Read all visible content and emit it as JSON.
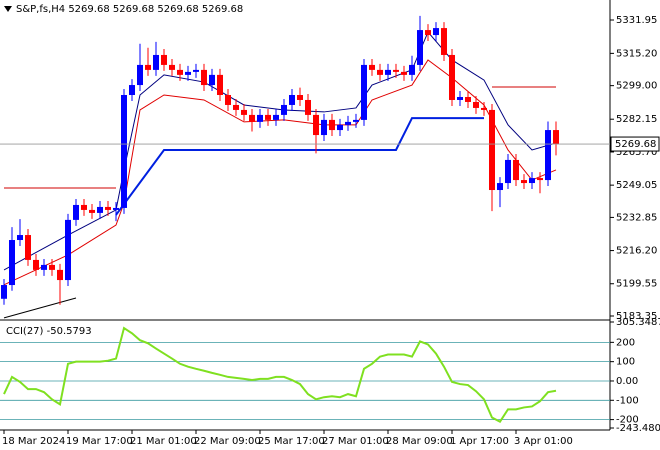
{
  "chart_data": {
    "type": "candlestick",
    "title": "S&P,fs,H4 5269.68 5269.68 5269.68 5269.68",
    "categories": [
      "18 Mar 2024",
      null,
      null,
      null,
      null,
      null,
      null,
      null,
      "19 Mar 17:00",
      null,
      null,
      null,
      null,
      null,
      null,
      null,
      "21 Mar 01:00",
      null,
      null,
      null,
      null,
      null,
      null,
      null,
      "22 Mar 09:00",
      null,
      null,
      null,
      null,
      null,
      null,
      null,
      "25 Mar 17:00",
      null,
      null,
      null,
      null,
      null,
      null,
      null,
      "27 Mar 01:00",
      null,
      null,
      null,
      null,
      null,
      null,
      null,
      "28 Mar 09:00",
      null,
      null,
      null,
      null,
      null,
      null,
      null,
      "1 Apr 17:00",
      null,
      null,
      null,
      null,
      null,
      null,
      null,
      "3 Apr 01:00",
      null,
      null,
      null,
      null,
      null
    ],
    "open": [
      5192.0,
      5198.9,
      5221.5,
      5224.0,
      5211.5,
      5206.5,
      5209.0,
      5206.5,
      5201.4,
      5231.6,
      5239.1,
      5236.6,
      5235.1,
      5238.1,
      5236.6,
      5237.6,
      5294.3,
      5299.3,
      5309.4,
      5306.9,
      5314.4,
      5309.4,
      5306.9,
      5304.4,
      5305.9,
      5306.9,
      5299.3,
      5304.4,
      5294.3,
      5289.3,
      5286.8,
      5284.3,
      5280.8,
      5284.3,
      5281.8,
      5284.3,
      5289.3,
      5294.3,
      5291.8,
      5284.3,
      5274.2,
      5281.8,
      5276.7,
      5279.3,
      5280.8,
      5281.8,
      5309.4,
      5306.9,
      5304.4,
      5306.9,
      5305.9,
      5304.4,
      5309.4,
      5326.9,
      5324.4,
      5327.9,
      5314.4,
      5291.8,
      5293.3,
      5290.8,
      5287.8,
      5286.8,
      5246.6,
      5250.1,
      5261.7,
      5251.6,
      5250.1,
      5252.6,
      5251.6,
      5276.7
    ],
    "high": [
      5201.9,
      5228.0,
      5232.0,
      5227.0,
      5214.5,
      5212.0,
      5212.0,
      5209.5,
      5234.6,
      5242.1,
      5242.1,
      5239.6,
      5241.1,
      5241.1,
      5240.6,
      5297.3,
      5302.3,
      5320.0,
      5318.0,
      5321.0,
      5317.4,
      5312.4,
      5309.9,
      5308.9,
      5309.9,
      5309.9,
      5307.4,
      5307.4,
      5297.3,
      5292.3,
      5289.8,
      5287.3,
      5287.3,
      5287.3,
      5287.3,
      5292.3,
      5297.3,
      5298.0,
      5294.8,
      5287.3,
      5284.8,
      5284.8,
      5282.3,
      5283.8,
      5284.8,
      5312.4,
      5312.4,
      5309.9,
      5309.9,
      5309.9,
      5308.9,
      5314.0,
      5334.0,
      5329.9,
      5330.9,
      5330.9,
      5317.4,
      5296.3,
      5296.3,
      5293.8,
      5290.8,
      5289.8,
      5253.1,
      5264.7,
      5264.7,
      5254.6,
      5255.6,
      5255.6,
      5281.0,
      5281.0
    ],
    "low": [
      5189.0,
      5196.0,
      5218.5,
      5208.5,
      5203.5,
      5203.5,
      5203.5,
      5189.0,
      5198.4,
      5228.6,
      5233.6,
      5232.1,
      5232.1,
      5233.6,
      5231.0,
      5234.6,
      5291.3,
      5296.3,
      5303.9,
      5303.9,
      5306.4,
      5303.9,
      5301.4,
      5301.4,
      5302.9,
      5296.3,
      5296.3,
      5291.3,
      5286.3,
      5283.8,
      5281.3,
      5276.0,
      5277.8,
      5278.8,
      5278.8,
      5281.3,
      5286.3,
      5288.8,
      5281.3,
      5265.0,
      5271.2,
      5273.7,
      5273.7,
      5276.3,
      5277.8,
      5278.8,
      5303.9,
      5301.4,
      5301.4,
      5302.9,
      5301.4,
      5301.4,
      5306.4,
      5321.4,
      5321.4,
      5311.4,
      5288.8,
      5288.8,
      5287.8,
      5284.8,
      5283.8,
      5236.0,
      5238.0,
      5247.1,
      5248.6,
      5247.1,
      5247.1,
      5245.0,
      5248.6,
      5264.0
    ],
    "close": [
      5198.9,
      5221.5,
      5224.0,
      5211.5,
      5206.5,
      5209.0,
      5206.5,
      5201.4,
      5231.6,
      5239.1,
      5236.6,
      5235.1,
      5238.1,
      5236.6,
      5237.6,
      5294.3,
      5299.3,
      5309.4,
      5306.9,
      5314.4,
      5309.4,
      5306.9,
      5304.4,
      5305.9,
      5306.9,
      5299.3,
      5304.4,
      5294.3,
      5289.3,
      5286.8,
      5284.3,
      5280.8,
      5284.3,
      5281.8,
      5284.3,
      5289.3,
      5294.3,
      5291.8,
      5284.3,
      5274.2,
      5281.8,
      5276.7,
      5279.3,
      5280.8,
      5281.8,
      5309.4,
      5306.9,
      5304.4,
      5306.9,
      5305.9,
      5304.4,
      5309.4,
      5326.9,
      5324.4,
      5327.9,
      5314.4,
      5291.8,
      5293.3,
      5290.8,
      5287.8,
      5286.8,
      5246.6,
      5250.1,
      5261.7,
      5251.6,
      5250.1,
      5252.6,
      5251.6,
      5276.7,
      5269.7
    ],
    "up_color": "#0000ff",
    "down_color": "#ff0000",
    "ylim": [
      5182.35,
      5340.99
    ],
    "yticks": [
      {
        "value": 5331.95,
        "label": "5331.95"
      },
      {
        "value": 5315.2,
        "label": "5315.20"
      },
      {
        "value": 5299,
        "label": "5299.00"
      },
      5282.15,
      {
        "value": 5265.7,
        "label": "5265.70"
      },
      5249.05,
      5232.85,
      {
        "value": 5216.2,
        "label": "5216.20"
      },
      5199.55,
      5183.35
    ],
    "last_price": 5269.68,
    "overlays": [
      {
        "color": "#00007f",
        "x": [
          0,
          8,
          14,
          15,
          17,
          20,
          25,
          30,
          35,
          40,
          44,
          46,
          51,
          53,
          56,
          60,
          63,
          66,
          69
        ],
        "values": [
          5206.5,
          5224.0,
          5236.6,
          5256.7,
          5294.3,
          5304.4,
          5300.8,
          5289.3,
          5286.8,
          5285.8,
          5287.8,
          5299.3,
          5306.9,
          5325.9,
          5311.9,
          5301.8,
          5279.3,
          5266.7,
          5270.2
        ]
      },
      {
        "color": "#e00000",
        "x": [
          0,
          8,
          14,
          15,
          17,
          20,
          25,
          30,
          35,
          40,
          44,
          46,
          51,
          53,
          56,
          60,
          63,
          66,
          69
        ],
        "values": [
          5199.0,
          5214.0,
          5229.0,
          5240.0,
          5286.8,
          5294.3,
          5291.8,
          5280.8,
          5281.8,
          5279.3,
          5279.3,
          5291.8,
          5299.3,
          5311.9,
          5302.9,
          5289.3,
          5266.7,
          5251.6,
          5256.7
        ]
      },
      {
        "color": "#0020e0",
        "x": [
          14,
          20,
          49,
          51,
          60
        ],
        "values": [
          5234.1,
          5266.7,
          5266.7,
          5282.7,
          5282.7
        ]
      },
      {
        "color": "#d00000",
        "x": [
          0,
          14
        ],
        "values": [
          5247.6,
          5247.6
        ]
      },
      {
        "color": "#d00000",
        "x": [
          61,
          69
        ],
        "values": [
          5298.3,
          5298.3
        ]
      },
      {
        "color": "#000000",
        "x": [
          0,
          9
        ],
        "values": [
          5182.4,
          5192.4
        ]
      }
    ],
    "cci": {
      "type": "line",
      "label": "CCI(27) -50.5793",
      "color": "#7fe020",
      "values": [
        -68,
        21,
        -5,
        -42,
        -42,
        -58,
        -95,
        -121,
        89,
        100,
        100,
        100,
        100,
        105,
        116,
        274,
        247,
        211,
        195,
        168,
        142,
        116,
        89,
        74,
        63,
        53,
        42,
        32,
        21,
        16,
        11,
        5,
        11,
        11,
        21,
        21,
        5,
        -16,
        -68,
        -95,
        -84,
        -79,
        -84,
        -68,
        -79,
        63,
        89,
        126,
        137,
        137,
        137,
        126,
        205,
        189,
        142,
        74,
        -5,
        -16,
        -21,
        -53,
        -95,
        -189,
        -211,
        -147,
        -147,
        -137,
        -132,
        -105,
        -58,
        -50.5793
      ],
      "ylim": [
        -243.4801,
        305.3487
      ],
      "yticks": [
        305.3487,
        200,
        100,
        {
          "value": 0,
          "label": "0.00"
        },
        -100,
        -200,
        -243.4801
      ],
      "level_color": "#3a9aa0"
    }
  }
}
